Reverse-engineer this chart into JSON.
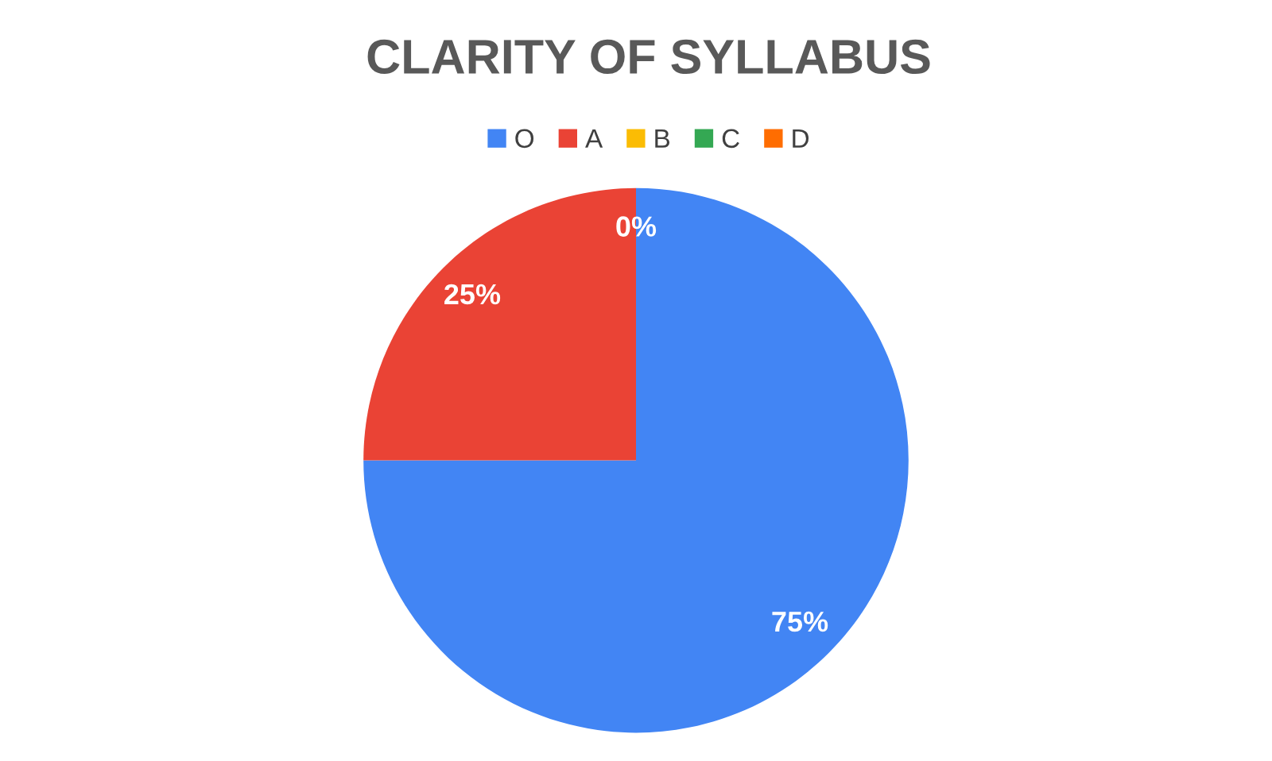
{
  "chart_data": {
    "type": "pie",
    "title": "CLARITY OF SYLLABUS",
    "categories": [
      "O",
      "A",
      "B",
      "C",
      "D"
    ],
    "values": [
      75,
      25,
      0,
      0,
      0
    ],
    "colors": [
      "#4285f4",
      "#ea4335",
      "#fbbc04",
      "#34a853",
      "#ff6d01"
    ],
    "value_labels": [
      "75%",
      "25%",
      "0%",
      null,
      null
    ],
    "legend": "top"
  }
}
